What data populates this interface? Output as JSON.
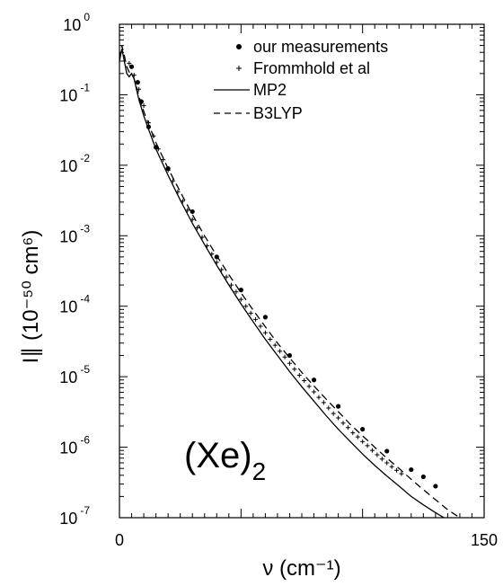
{
  "chart_data": {
    "type": "scatter",
    "title": "",
    "xlabel": "ν (cm⁻¹)",
    "ylabel": "I∥ (10⁻⁵⁰ cm⁶)",
    "xlim": [
      0,
      150
    ],
    "ylim": [
      1e-07,
      1
    ],
    "yscale": "log",
    "grid": false,
    "legend_position": "top-right",
    "x_ticks": {
      "labels": [
        "0",
        "150"
      ],
      "values": [
        0,
        150
      ]
    },
    "y_ticks": [
      {
        "base": "10",
        "exp": "0",
        "value": 1
      },
      {
        "base": "10",
        "exp": "-1",
        "value": 0.1
      },
      {
        "base": "10",
        "exp": "-2",
        "value": 0.01
      },
      {
        "base": "10",
        "exp": "-3",
        "value": 0.001
      },
      {
        "base": "10",
        "exp": "-4",
        "value": 0.0001
      },
      {
        "base": "10",
        "exp": "-5",
        "value": 1e-05
      },
      {
        "base": "10",
        "exp": "-6",
        "value": 1e-06
      },
      {
        "base": "10",
        "exp": "-7",
        "value": 1e-07
      }
    ],
    "annotation": {
      "main": "(Xe)",
      "sub": "2"
    },
    "series": [
      {
        "name": "our measurements",
        "style": "filled-circle",
        "points": [
          [
            5,
            0.25
          ],
          [
            7.5,
            0.15
          ],
          [
            9,
            0.08
          ],
          [
            12,
            0.035
          ],
          [
            15,
            0.018
          ],
          [
            20,
            0.009
          ],
          [
            30,
            0.0022
          ],
          [
            40,
            0.0005
          ],
          [
            50,
            0.00017
          ],
          [
            60,
            7e-05
          ],
          [
            70,
            2e-05
          ],
          [
            80,
            9e-06
          ],
          [
            90,
            3.8e-06
          ],
          [
            100,
            1.8e-06
          ],
          [
            110,
            8.8e-07
          ],
          [
            120,
            4.8e-07
          ],
          [
            125,
            3.8e-07
          ],
          [
            130,
            2.8e-07
          ]
        ]
      },
      {
        "name": "Frommhold et al",
        "style": "plus",
        "points": [
          [
            4,
            0.28
          ],
          [
            6,
            0.19
          ],
          [
            8,
            0.12
          ],
          [
            10,
            0.07
          ],
          [
            12,
            0.04
          ],
          [
            14,
            0.026
          ],
          [
            16,
            0.017
          ],
          [
            18,
            0.012
          ],
          [
            20,
            0.0085
          ],
          [
            22,
            0.006
          ],
          [
            24,
            0.0042
          ],
          [
            26,
            0.0031
          ],
          [
            28,
            0.0023
          ],
          [
            30,
            0.0017
          ],
          [
            32,
            0.0013
          ],
          [
            34,
            0.00095
          ],
          [
            36,
            0.00072
          ],
          [
            38,
            0.00055
          ],
          [
            40,
            0.00042
          ],
          [
            42,
            0.00033
          ],
          [
            44,
            0.00026
          ],
          [
            46,
            0.0002
          ],
          [
            48,
            0.00016
          ],
          [
            50,
            0.000125
          ],
          [
            52,
            0.0001
          ],
          [
            54,
            8e-05
          ],
          [
            56,
            6.5e-05
          ],
          [
            58,
            5.2e-05
          ],
          [
            60,
            4.2e-05
          ],
          [
            62,
            3.4e-05
          ],
          [
            64,
            2.8e-05
          ],
          [
            66,
            2.3e-05
          ],
          [
            68,
            1.9e-05
          ],
          [
            70,
            1.55e-05
          ],
          [
            72,
            1.28e-05
          ],
          [
            74,
            1.05e-05
          ],
          [
            76,
            8.8e-06
          ],
          [
            78,
            7.3e-06
          ],
          [
            80,
            6.1e-06
          ],
          [
            82,
            5.1e-06
          ],
          [
            84,
            4.3e-06
          ],
          [
            86,
            3.6e-06
          ],
          [
            88,
            3e-06
          ],
          [
            90,
            2.6e-06
          ],
          [
            92,
            2.2e-06
          ],
          [
            94,
            1.9e-06
          ],
          [
            96,
            1.6e-06
          ],
          [
            98,
            1.4e-06
          ],
          [
            100,
            1.2e-06
          ],
          [
            102,
            1.05e-06
          ],
          [
            104,
            9e-07
          ],
          [
            106,
            7.8e-07
          ],
          [
            108,
            6.8e-07
          ],
          [
            110,
            6e-07
          ],
          [
            112,
            5.3e-07
          ],
          [
            114,
            4.7e-07
          ],
          [
            116,
            4.2e-07
          ]
        ]
      },
      {
        "name": "MP2",
        "style": "solid",
        "points": [
          [
            0,
            0.3
          ],
          [
            1,
            0.45
          ],
          [
            2,
            0.3
          ],
          [
            3,
            0.2
          ],
          [
            4,
            0.18
          ],
          [
            5,
            0.2
          ],
          [
            6,
            0.17
          ],
          [
            7,
            0.12
          ],
          [
            8,
            0.085
          ],
          [
            10,
            0.05
          ],
          [
            12,
            0.032
          ],
          [
            15,
            0.017
          ],
          [
            20,
            0.0072
          ],
          [
            25,
            0.0032
          ],
          [
            30,
            0.0015
          ],
          [
            35,
            0.00075
          ],
          [
            40,
            0.00038
          ],
          [
            45,
            0.0002
          ],
          [
            50,
            0.000108
          ],
          [
            55,
            6e-05
          ],
          [
            60,
            3.4e-05
          ],
          [
            65,
            2e-05
          ],
          [
            70,
            1.18e-05
          ],
          [
            75,
            7.2e-06
          ],
          [
            80,
            4.5e-06
          ],
          [
            85,
            2.8e-06
          ],
          [
            90,
            1.8e-06
          ],
          [
            95,
            1.2e-06
          ],
          [
            100,
            8e-07
          ],
          [
            105,
            5.5e-07
          ],
          [
            110,
            3.9e-07
          ],
          [
            115,
            2.8e-07
          ],
          [
            120,
            2e-07
          ],
          [
            125,
            1.52e-07
          ],
          [
            130,
            1.18e-07
          ],
          [
            135,
            9.3e-08
          ],
          [
            140,
            7.6e-08
          ],
          [
            145,
            6.4e-08
          ],
          [
            150,
            5.5e-08
          ]
        ]
      },
      {
        "name": "B3LYP",
        "style": "dashed",
        "points": [
          [
            0,
            0.32
          ],
          [
            1,
            0.5
          ],
          [
            2,
            0.36
          ],
          [
            3,
            0.25
          ],
          [
            4,
            0.21
          ],
          [
            5,
            0.2
          ],
          [
            6,
            0.17
          ],
          [
            7,
            0.13
          ],
          [
            8,
            0.095
          ],
          [
            10,
            0.058
          ],
          [
            12,
            0.038
          ],
          [
            15,
            0.021
          ],
          [
            20,
            0.009
          ],
          [
            25,
            0.0042
          ],
          [
            30,
            0.002
          ],
          [
            35,
            0.001
          ],
          [
            40,
            0.00052
          ],
          [
            45,
            0.00028
          ],
          [
            50,
            0.000155
          ],
          [
            55,
            8.8e-05
          ],
          [
            60,
            5.1e-05
          ],
          [
            65,
            3e-05
          ],
          [
            70,
            1.85e-05
          ],
          [
            75,
            1.15e-05
          ],
          [
            80,
            7.4e-06
          ],
          [
            85,
            4.8e-06
          ],
          [
            90,
            3.2e-06
          ],
          [
            95,
            2.1e-06
          ],
          [
            100,
            1.45e-06
          ],
          [
            105,
            1e-06
          ],
          [
            110,
            7e-07
          ],
          [
            115,
            5e-07
          ],
          [
            120,
            3.5e-07
          ],
          [
            125,
            2.5e-07
          ],
          [
            130,
            1.8e-07
          ],
          [
            135,
            1.3e-07
          ],
          [
            140,
            1e-07
          ],
          [
            145,
            7e-08
          ],
          [
            150,
            5.5e-08
          ]
        ]
      }
    ]
  }
}
